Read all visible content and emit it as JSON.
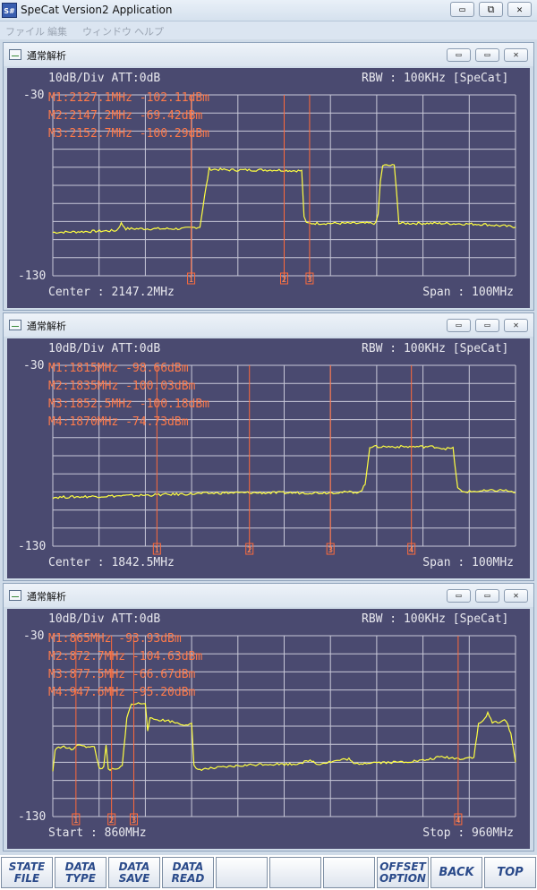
{
  "app": {
    "title": "SpeCat Version2 Application",
    "icon_label": "S#",
    "menu": [
      "ファイル",
      "編集",
      "ウィンドウ",
      "ヘルプ"
    ],
    "controls": {
      "minimize": "▭",
      "restore": "⧉",
      "close": "✕"
    }
  },
  "panels": [
    {
      "title": "通常解析",
      "scale": "10dB/Div  ATT:0dB",
      "rbw": "RBW : 100KHz [SpeCat]",
      "top_label": "-30",
      "bottom_label": "-130",
      "left_footer": "Center : 2147.2MHz",
      "right_footer": "Span : 100MHz",
      "markers_text": [
        "M1:2127.1MHz -102.11dBm",
        "M2:2147.2MHz -69.42dBm",
        "M3:2152.7MHz -100.29dBm"
      ],
      "chart_data": {
        "type": "line",
        "x_start_mhz": 2097.2,
        "x_stop_mhz": 2197.2,
        "ylim": [
          -130,
          -30
        ],
        "trace_color": "#ffff40",
        "trace": [
          [
            2097.2,
            -106
          ],
          [
            2105,
            -105.5
          ],
          [
            2111,
            -105
          ],
          [
            2112,
            -101
          ],
          [
            2113,
            -104
          ],
          [
            2125,
            -104
          ],
          [
            2129,
            -103
          ],
          [
            2130,
            -86
          ],
          [
            2131,
            -71
          ],
          [
            2135,
            -71.5
          ],
          [
            2145,
            -71.5
          ],
          [
            2151,
            -72
          ],
          [
            2151.5,
            -97
          ],
          [
            2152,
            -101
          ],
          [
            2167,
            -101
          ],
          [
            2167.5,
            -96
          ],
          [
            2168,
            -78
          ],
          [
            2168.5,
            -69
          ],
          [
            2171,
            -69
          ],
          [
            2171.5,
            -83
          ],
          [
            2172,
            -101
          ],
          [
            2180,
            -101
          ],
          [
            2190,
            -101.5
          ],
          [
            2197.2,
            -103
          ]
        ],
        "markers": [
          {
            "id": "1",
            "x": 2127.1,
            "level": -102.11
          },
          {
            "id": "2",
            "x": 2147.2,
            "level": -69.42
          },
          {
            "id": "3",
            "x": 2152.7,
            "level": -100.29
          }
        ]
      }
    },
    {
      "title": "通常解析",
      "scale": "10dB/Div  ATT:0dB",
      "rbw": "RBW : 100KHz [SpeCat]",
      "top_label": "-30",
      "bottom_label": "-130",
      "left_footer": "Center : 1842.5MHz",
      "right_footer": "Span : 100MHz",
      "markers_text": [
        "M1:1815MHz -98.66dBm",
        "M2:1835MHz -100.03dBm",
        "M3:1852.5MHz -100.18dBm",
        "M4:1870MHz -74.73dBm"
      ],
      "chart_data": {
        "type": "line",
        "x_start_mhz": 1792.5,
        "x_stop_mhz": 1892.5,
        "ylim": [
          -130,
          -30
        ],
        "trace_color": "#ffff40",
        "trace": [
          [
            1792.5,
            -103
          ],
          [
            1810,
            -102
          ],
          [
            1830,
            -100.5
          ],
          [
            1850,
            -100.5
          ],
          [
            1859,
            -100
          ],
          [
            1860,
            -96
          ],
          [
            1861,
            -75
          ],
          [
            1862,
            -75
          ],
          [
            1875,
            -75
          ],
          [
            1877,
            -76
          ],
          [
            1879,
            -76
          ],
          [
            1880,
            -98
          ],
          [
            1881,
            -100
          ],
          [
            1890,
            -99
          ],
          [
            1892.5,
            -100.5
          ]
        ],
        "markers": [
          {
            "id": "1",
            "x": 1815,
            "level": -98.66
          },
          {
            "id": "2",
            "x": 1835,
            "level": -100.03
          },
          {
            "id": "3",
            "x": 1852.5,
            "level": -100.18
          },
          {
            "id": "4",
            "x": 1870,
            "level": -74.73
          }
        ]
      }
    },
    {
      "title": "通常解析",
      "scale": "10dB/Div  ATT:0dB",
      "rbw": "RBW : 100KHz [SpeCat]",
      "top_label": "-30",
      "bottom_label": "-130",
      "left_footer": "Start : 860MHz",
      "right_footer": "Stop : 960MHz",
      "markers_text": [
        "M1:865MHz -93.93dBm",
        "M2:872.7MHz -104.63dBm",
        "M3:877.5MHz -66.67dBm",
        "M4:947.6MHz -95.20dBm"
      ],
      "chart_data": {
        "type": "line",
        "x_start_mhz": 860,
        "x_stop_mhz": 960,
        "ylim": [
          -130,
          -30
        ],
        "trace_color": "#ffff40",
        "trace": [
          [
            860,
            -105
          ],
          [
            860.5,
            -93
          ],
          [
            862,
            -91
          ],
          [
            864,
            -93
          ],
          [
            866,
            -90
          ],
          [
            868,
            -92
          ],
          [
            869,
            -91
          ],
          [
            869.5,
            -98
          ],
          [
            870,
            -103
          ],
          [
            871,
            -103
          ],
          [
            871.5,
            -91
          ],
          [
            872,
            -104
          ],
          [
            874,
            -104
          ],
          [
            875,
            -102
          ],
          [
            876,
            -75
          ],
          [
            877,
            -68
          ],
          [
            880,
            -67
          ],
          [
            880.5,
            -82
          ],
          [
            881,
            -76
          ],
          [
            885,
            -77
          ],
          [
            888,
            -79
          ],
          [
            890,
            -79
          ],
          [
            890.5,
            -102
          ],
          [
            891,
            -104
          ],
          [
            896,
            -103
          ],
          [
            900,
            -102
          ],
          [
            905,
            -101
          ],
          [
            912,
            -101
          ],
          [
            916,
            -99
          ],
          [
            917,
            -101
          ],
          [
            924,
            -98
          ],
          [
            925,
            -101
          ],
          [
            929,
            -100
          ],
          [
            934,
            -100
          ],
          [
            940,
            -99
          ],
          [
            944,
            -97
          ],
          [
            948,
            -98
          ],
          [
            951,
            -97
          ],
          [
            952,
            -79
          ],
          [
            953,
            -77
          ],
          [
            954,
            -73
          ],
          [
            955,
            -78
          ],
          [
            958,
            -77
          ],
          [
            959,
            -84
          ],
          [
            960,
            -100
          ]
        ],
        "markers": [
          {
            "id": "1",
            "x": 865,
            "level": -93.93
          },
          {
            "id": "2",
            "x": 872.7,
            "level": -104.63
          },
          {
            "id": "3",
            "x": 877.5,
            "level": -66.67
          },
          {
            "id": "4",
            "x": 947.6,
            "level": -95.2
          }
        ]
      }
    }
  ],
  "toolbar": [
    {
      "l1": "STATE",
      "l2": "FILE"
    },
    {
      "l1": "DATA",
      "l2": "TYPE"
    },
    {
      "l1": "DATA",
      "l2": "SAVE"
    },
    {
      "l1": "DATA",
      "l2": "READ"
    },
    {
      "l1": "",
      "l2": ""
    },
    {
      "l1": "",
      "l2": ""
    },
    {
      "l1": "",
      "l2": ""
    },
    {
      "l1": "OFFSET",
      "l2": "OPTION"
    },
    {
      "l1": "BACK",
      "l2": ""
    },
    {
      "l1": "TOP",
      "l2": ""
    }
  ]
}
